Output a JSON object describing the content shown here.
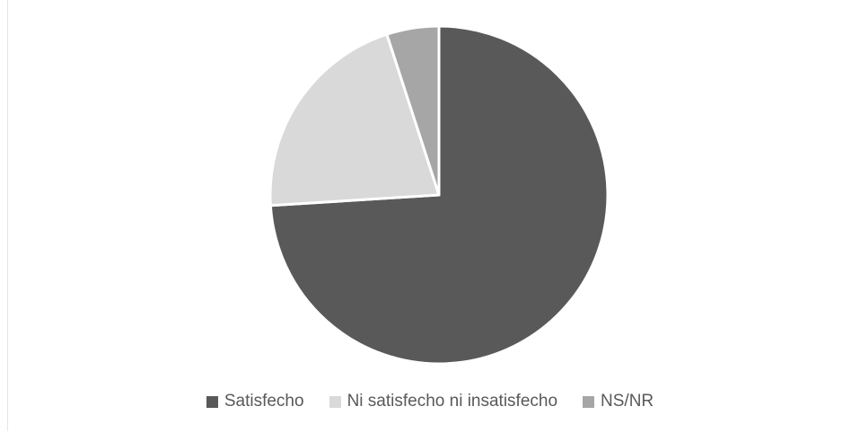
{
  "chart_data": {
    "type": "pie",
    "title": "",
    "slices": [
      {
        "label": "Satisfecho",
        "value": 74,
        "color": "#595959"
      },
      {
        "label": "Ni satisfecho ni insatisfecho",
        "value": 21,
        "color": "#d9d9d9"
      },
      {
        "label": "NS/NR",
        "value": 5,
        "color": "#a6a6a6"
      }
    ],
    "start_angle": "12 o'clock",
    "direction": "clockwise",
    "legend_position": "bottom"
  }
}
